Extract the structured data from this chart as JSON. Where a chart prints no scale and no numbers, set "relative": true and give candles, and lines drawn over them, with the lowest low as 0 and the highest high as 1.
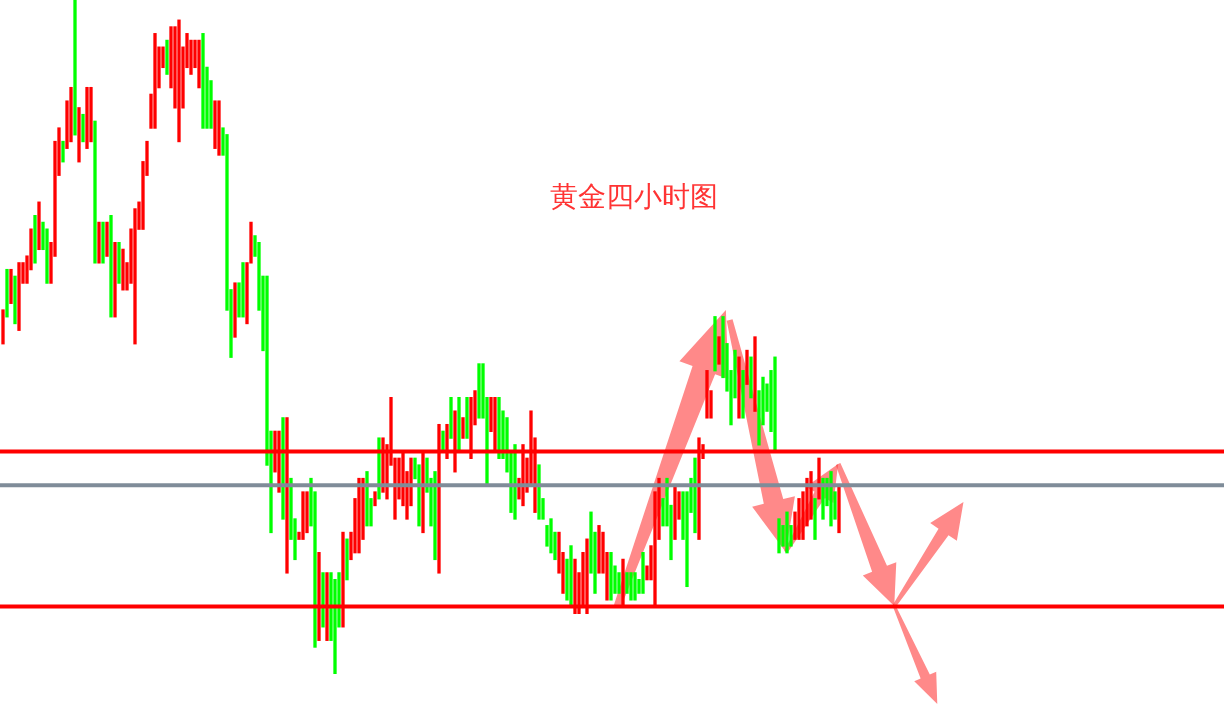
{
  "chart_data": {
    "type": "candlestick",
    "relative": true,
    "title": "黄金四小时图",
    "categories": [
      null,
      null,
      null,
      null,
      null,
      null,
      null,
      null,
      null,
      null,
      null,
      null,
      null,
      null,
      null,
      null,
      null,
      null,
      null,
      null,
      null,
      null,
      null,
      null,
      null,
      null,
      null,
      null,
      null,
      null,
      null,
      null,
      null,
      null,
      null,
      null,
      null,
      null,
      null,
      null,
      null,
      null,
      null,
      null,
      null,
      null,
      null,
      null,
      null,
      null,
      null,
      null,
      null,
      null,
      null,
      null,
      null,
      null,
      null,
      null,
      null,
      null,
      null,
      null,
      null,
      null,
      null,
      null,
      null,
      null,
      null,
      null,
      null,
      null,
      null,
      null,
      null,
      null,
      null,
      null,
      null,
      null,
      null,
      null,
      null,
      null,
      null,
      null,
      null,
      null,
      null,
      null,
      null,
      null,
      null,
      null,
      null,
      null,
      null,
      null,
      null,
      null,
      null,
      null,
      null,
      null,
      null,
      null,
      null,
      null,
      null,
      null,
      null,
      null,
      null,
      null,
      null,
      null,
      null,
      null,
      null,
      null,
      null,
      null,
      null,
      null,
      null,
      null,
      null,
      null,
      null,
      null,
      null,
      null,
      null,
      null,
      null,
      null,
      null,
      null,
      null,
      null,
      null,
      null,
      null,
      null,
      null,
      null,
      null,
      null,
      null,
      null,
      null,
      null,
      null,
      null,
      null,
      null,
      null,
      null,
      null,
      null,
      null,
      null,
      null,
      null,
      null,
      null,
      null,
      null,
      null,
      null,
      null,
      null,
      null,
      null,
      null,
      null,
      null,
      null,
      null,
      null,
      null,
      null,
      null,
      null,
      null,
      null,
      null,
      null,
      null,
      null,
      null,
      null,
      null,
      null,
      null,
      null,
      null,
      null,
      null,
      null,
      null,
      null,
      null,
      null,
      null,
      null,
      null,
      null
    ],
    "ohlc": [
      [
        0.49,
        0.54,
        0.49,
        0.54
      ],
      [
        0.6,
        0.6,
        0.53,
        0.53
      ],
      [
        0.55,
        0.6,
        0.55,
        0.6
      ],
      [
        0.59,
        0.59,
        0.52,
        0.52
      ],
      [
        0.51,
        0.61,
        0.51,
        0.61
      ],
      [
        0.58,
        0.61,
        0.58,
        0.61
      ],
      [
        0.58,
        0.62,
        0.58,
        0.62
      ],
      [
        0.6,
        0.66,
        0.6,
        0.66
      ],
      [
        0.68,
        0.68,
        0.61,
        0.61
      ],
      [
        0.63,
        0.7,
        0.63,
        0.7
      ],
      [
        0.67,
        0.67,
        0.63,
        0.63
      ],
      [
        0.66,
        0.66,
        0.58,
        0.58
      ],
      [
        0.58,
        0.64,
        0.58,
        0.64
      ],
      [
        0.62,
        0.79,
        0.62,
        0.79
      ],
      [
        0.74,
        0.81,
        0.74,
        0.81
      ],
      [
        0.79,
        0.79,
        0.76,
        0.76
      ],
      [
        0.78,
        0.85,
        0.78,
        0.85
      ],
      [
        0.79,
        0.87,
        0.79,
        0.87
      ],
      [
        1,
        1,
        0.8,
        0.8
      ],
      [
        0.76,
        0.84,
        0.76,
        0.84
      ],
      [
        0.83,
        0.83,
        0.79,
        0.79
      ],
      [
        0.78,
        0.87,
        0.78,
        0.87
      ],
      [
        0.79,
        0.87,
        0.79,
        0.87
      ],
      [
        0.82,
        0.82,
        0.61,
        0.61
      ],
      [
        0.61,
        0.67,
        0.61,
        0.67
      ],
      [
        0.67,
        0.67,
        0.61,
        0.61
      ],
      [
        0.62,
        0.67,
        0.62,
        0.67
      ],
      [
        0.68,
        0.68,
        0.53,
        0.53
      ],
      [
        0.53,
        0.64,
        0.53,
        0.64
      ],
      [
        0.64,
        0.64,
        0.58,
        0.58
      ],
      [
        0.57,
        0.63,
        0.57,
        0.63
      ],
      [
        0.57,
        0.61,
        0.57,
        0.61
      ],
      [
        0.58,
        0.66,
        0.58,
        0.66
      ],
      [
        0.49,
        0.69,
        0.49,
        0.69
      ],
      [
        0.66,
        0.7,
        0.66,
        0.7
      ],
      [
        0.66,
        0.76,
        0.66,
        0.76
      ],
      [
        0.74,
        0.79,
        0.74,
        0.79
      ],
      [
        0.81,
        0.86,
        0.81,
        0.86
      ],
      [
        0.81,
        0.95,
        0.81,
        0.95
      ],
      [
        0.87,
        0.93,
        0.87,
        0.93
      ],
      [
        0.9,
        0.93,
        0.9,
        0.93
      ],
      [
        0.94,
        0.94,
        0.89,
        0.89
      ],
      [
        0.87,
        0.96,
        0.87,
        0.96
      ],
      [
        0.84,
        0.96,
        0.84,
        0.96
      ],
      [
        0.79,
        0.97,
        0.79,
        0.97
      ],
      [
        0.84,
        0.93,
        0.84,
        0.93
      ],
      [
        0.9,
        0.95,
        0.9,
        0.95
      ],
      [
        0.89,
        0.94,
        0.89,
        0.94
      ],
      [
        0.9,
        0.94,
        0.9,
        0.94
      ],
      [
        0.87,
        0.94,
        0.87,
        0.94
      ],
      [
        0.95,
        0.95,
        0.81,
        0.81
      ],
      [
        0.9,
        0.9,
        0.81,
        0.81
      ],
      [
        0.88,
        0.88,
        0.81,
        0.81
      ],
      [
        0.78,
        0.85,
        0.78,
        0.85
      ],
      [
        0.77,
        0.85,
        0.77,
        0.85
      ],
      [
        0.81,
        0.81,
        0.77,
        0.77
      ],
      [
        0.8,
        0.8,
        0.54,
        0.54
      ],
      [
        0.57,
        0.57,
        0.47,
        0.47
      ],
      [
        0.5,
        0.58,
        0.5,
        0.58
      ],
      [
        0.58,
        0.58,
        0.53,
        0.53
      ],
      [
        0.61,
        0.61,
        0.53,
        0.53
      ],
      [
        0.52,
        0.61,
        0.52,
        0.61
      ],
      [
        0.61,
        0.67,
        0.61,
        0.67
      ],
      [
        0.65,
        0.65,
        0.62,
        0.62
      ],
      [
        0.64,
        0.64,
        0.54,
        0.54
      ],
      [
        0.59,
        0.59,
        0.48,
        0.48
      ],
      [
        0.59,
        0.59,
        0.31,
        0.31
      ],
      [
        0.36,
        0.36,
        0.21,
        0.21
      ],
      [
        0.3,
        0.36,
        0.3,
        0.36
      ],
      [
        0.27,
        0.36,
        0.27,
        0.36
      ],
      [
        0.38,
        0.38,
        0.23,
        0.23
      ],
      [
        0.15,
        0.38,
        0.15,
        0.38
      ],
      [
        0.29,
        0.29,
        0.2,
        0.2
      ],
      [
        0.23,
        0.23,
        0.17,
        0.17
      ],
      [
        0.2,
        0.21,
        0.2,
        0.21
      ],
      [
        0.2,
        0.27,
        0.2,
        0.27
      ],
      [
        0.21,
        0.27,
        0.21,
        0.27
      ],
      [
        0.29,
        0.29,
        0.22,
        0.22
      ],
      [
        0.27,
        0.27,
        0.04,
        0.04
      ],
      [
        0.05,
        0.18,
        0.05,
        0.18
      ],
      [
        0.15,
        0.15,
        0.07,
        0.07
      ],
      [
        0.05,
        0.15,
        0.05,
        0.15
      ],
      [
        0.15,
        0.15,
        0.05,
        0.05
      ],
      [
        0.14,
        0.14,
        0,
        0
      ],
      [
        0.15,
        0.15,
        0.07,
        0.07
      ],
      [
        0.07,
        0.21,
        0.07,
        0.21
      ],
      [
        0.2,
        0.2,
        0.14,
        0.14
      ],
      [
        0.17,
        0.21,
        0.17,
        0.21
      ],
      [
        0.18,
        0.26,
        0.18,
        0.26
      ],
      [
        0.18,
        0.29,
        0.18,
        0.29
      ],
      [
        0.2,
        0.29,
        0.2,
        0.29
      ],
      [
        0.3,
        0.3,
        0.22,
        0.22
      ],
      [
        0.26,
        0.26,
        0.22,
        0.22
      ],
      [
        0.25,
        0.27,
        0.25,
        0.27
      ],
      [
        0.35,
        0.35,
        0.26,
        0.26
      ],
      [
        0.27,
        0.35,
        0.27,
        0.35
      ],
      [
        0.26,
        0.34,
        0.26,
        0.34
      ],
      [
        0.31,
        0.41,
        0.31,
        0.41
      ],
      [
        0.23,
        0.32,
        0.23,
        0.32
      ],
      [
        0.26,
        0.32,
        0.26,
        0.32
      ],
      [
        0.25,
        0.33,
        0.25,
        0.33
      ],
      [
        0.23,
        0.3,
        0.23,
        0.3
      ],
      [
        0.25,
        0.32,
        0.25,
        0.32
      ],
      [
        0.32,
        0.32,
        0.29,
        0.29
      ],
      [
        0.31,
        0.31,
        0.22,
        0.22
      ],
      [
        0.21,
        0.33,
        0.21,
        0.33
      ],
      [
        0.32,
        0.32,
        0.27,
        0.27
      ],
      [
        0.29,
        0.29,
        0.22,
        0.22
      ],
      [
        0.3,
        0.3,
        0.17,
        0.17
      ],
      [
        0.15,
        0.37,
        0.15,
        0.37
      ],
      [
        0.36,
        0.36,
        0.33,
        0.33
      ],
      [
        0.32,
        0.37,
        0.32,
        0.37
      ],
      [
        0.41,
        0.41,
        0.35,
        0.35
      ],
      [
        0.3,
        0.39,
        0.3,
        0.39
      ],
      [
        0.41,
        0.41,
        0.33,
        0.33
      ],
      [
        0.35,
        0.38,
        0.35,
        0.38
      ],
      [
        0.41,
        0.41,
        0.35,
        0.35
      ],
      [
        0.32,
        0.41,
        0.32,
        0.41
      ],
      [
        0.37,
        0.42,
        0.37,
        0.42
      ],
      [
        0.46,
        0.46,
        0.38,
        0.38
      ],
      [
        0.46,
        0.46,
        0.38,
        0.38
      ],
      [
        0.41,
        0.41,
        0.28,
        0.28
      ],
      [
        0.36,
        0.41,
        0.36,
        0.41
      ],
      [
        0.33,
        0.41,
        0.33,
        0.41
      ],
      [
        0.41,
        0.41,
        0.32,
        0.32
      ],
      [
        0.39,
        0.39,
        0.32,
        0.32
      ],
      [
        0.38,
        0.38,
        0.3,
        0.3
      ],
      [
        0.33,
        0.33,
        0.24,
        0.24
      ],
      [
        0.34,
        0.34,
        0.23,
        0.23
      ],
      [
        0.26,
        0.29,
        0.26,
        0.29
      ],
      [
        0.25,
        0.34,
        0.25,
        0.34
      ],
      [
        0.27,
        0.32,
        0.27,
        0.32
      ],
      [
        0.28,
        0.39,
        0.28,
        0.39
      ],
      [
        0.24,
        0.35,
        0.24,
        0.35
      ],
      [
        0.31,
        0.31,
        0.23,
        0.23
      ],
      [
        0.26,
        0.26,
        0.23,
        0.23
      ],
      [
        0.22,
        0.22,
        0.19,
        0.19
      ],
      [
        0.23,
        0.23,
        0.18,
        0.18
      ],
      [
        0.21,
        0.21,
        0.17,
        0.17
      ],
      [
        0.15,
        0.21,
        0.15,
        0.21
      ],
      [
        0.12,
        0.18,
        0.12,
        0.18
      ],
      [
        0.17,
        0.17,
        0.11,
        0.11
      ],
      [
        0.19,
        0.19,
        0.1,
        0.1
      ],
      [
        0.09,
        0.17,
        0.09,
        0.17
      ],
      [
        0.09,
        0.15,
        0.09,
        0.15
      ],
      [
        0.1,
        0.18,
        0.1,
        0.18
      ],
      [
        0.09,
        0.2,
        0.09,
        0.2
      ],
      [
        0.24,
        0.24,
        0.15,
        0.15
      ],
      [
        0.21,
        0.21,
        0.12,
        0.12
      ],
      [
        0.15,
        0.22,
        0.15,
        0.22
      ],
      [
        0.15,
        0.21,
        0.15,
        0.21
      ],
      [
        0.11,
        0.18,
        0.11,
        0.18
      ],
      [
        0.18,
        0.18,
        0.11,
        0.11
      ],
      [
        0.16,
        0.16,
        0.12,
        0.12
      ],
      [
        0.15,
        0.15,
        0.12,
        0.12
      ],
      [
        0.1,
        0.17,
        0.1,
        0.17
      ],
      [
        0.15,
        0.15,
        0.12,
        0.12
      ],
      [
        0.15,
        0.15,
        0.11,
        0.11
      ],
      [
        0.15,
        0.15,
        0.11,
        0.11
      ],
      [
        0.14,
        0.14,
        0.12,
        0.12
      ],
      [
        0.18,
        0.18,
        0.12,
        0.12
      ],
      [
        0.14,
        0.16,
        0.14,
        0.16
      ],
      [
        0.14,
        0.19,
        0.14,
        0.19
      ],
      [
        0.1,
        0.27,
        0.1,
        0.27
      ],
      [
        0.2,
        0.29,
        0.2,
        0.29
      ],
      [
        0.26,
        0.26,
        0.22,
        0.22
      ],
      [
        0.29,
        0.29,
        0.22,
        0.22
      ],
      [
        0.25,
        0.25,
        0.17,
        0.17
      ],
      [
        0.2,
        0.28,
        0.2,
        0.28
      ],
      [
        0.23,
        0.27,
        0.23,
        0.27
      ],
      [
        0.27,
        0.27,
        0.2,
        0.2
      ],
      [
        0.27,
        0.27,
        0.13,
        0.13
      ],
      [
        0.29,
        0.29,
        0.24,
        0.24
      ],
      [
        0.32,
        0.32,
        0.21,
        0.21
      ],
      [
        0.2,
        0.35,
        0.2,
        0.35
      ],
      [
        0.32,
        0.34,
        0.32,
        0.34
      ],
      [
        0.38,
        0.45,
        0.38,
        0.45
      ],
      [
        0.38,
        0.42,
        0.38,
        0.42
      ],
      [
        0.53,
        0.53,
        0.45,
        0.45
      ],
      [
        0.46,
        0.5,
        0.46,
        0.5
      ],
      [
        0.53,
        0.53,
        0.44,
        0.44
      ],
      [
        0.49,
        0.49,
        0.42,
        0.42
      ],
      [
        0.45,
        0.45,
        0.37,
        0.37
      ],
      [
        0.48,
        0.48,
        0.41,
        0.41
      ],
      [
        0.38,
        0.47,
        0.38,
        0.47
      ],
      [
        0.45,
        0.45,
        0.38,
        0.38
      ],
      [
        0.43,
        0.48,
        0.43,
        0.48
      ],
      [
        0.47,
        0.47,
        0.41,
        0.41
      ],
      [
        0.39,
        0.5,
        0.39,
        0.5
      ],
      [
        0.42,
        0.42,
        0.34,
        0.34
      ],
      [
        0.44,
        0.44,
        0.37,
        0.37
      ],
      [
        0.43,
        0.43,
        0.39,
        0.39
      ],
      [
        0.45,
        0.45,
        0.36,
        0.36
      ],
      [
        0.47,
        0.47,
        0.33,
        0.33
      ],
      [
        0.23,
        0.23,
        0.18,
        0.18
      ],
      [
        0.22,
        0.22,
        0.19,
        0.19
      ],
      [
        0.24,
        0.24,
        0.18,
        0.18
      ],
      [
        0.22,
        0.22,
        0.19,
        0.19
      ],
      [
        0.2,
        0.24,
        0.2,
        0.24
      ],
      [
        0.2,
        0.26,
        0.2,
        0.26
      ],
      [
        0.2,
        0.27,
        0.2,
        0.27
      ],
      [
        0.22,
        0.29,
        0.22,
        0.29
      ],
      [
        0.23,
        0.3,
        0.23,
        0.3
      ],
      [
        0.26,
        0.26,
        0.2,
        0.2
      ],
      [
        0.26,
        0.32,
        0.26,
        0.32
      ],
      [
        0.29,
        0.29,
        0.23,
        0.23
      ],
      [
        0.29,
        0.29,
        0.25,
        0.25
      ],
      [
        0.3,
        0.3,
        0.22,
        0.22
      ],
      [
        0.27,
        0.27,
        0.23,
        0.23
      ],
      [
        0.21,
        0.28,
        0.21,
        0.28
      ]
    ],
    "ref_lines": [
      {
        "axis": "y",
        "value": 0.33,
        "color": "#ff0000"
      },
      {
        "axis": "y",
        "value": 0.28,
        "color": "#7f8c99"
      },
      {
        "axis": "y",
        "value": 0.1,
        "color": "#ff0000"
      }
    ]
  }
}
